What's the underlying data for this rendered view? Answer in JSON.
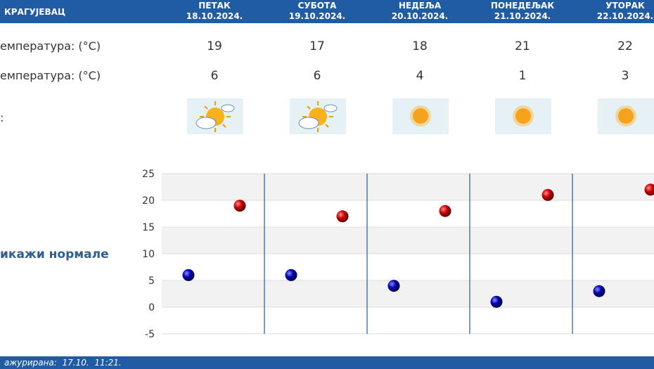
{
  "header": {
    "city": "КРАГУЈЕВАЦ",
    "days": [
      {
        "name": "ПЕТАК",
        "date": "18.10.2024."
      },
      {
        "name": "СУБОТА",
        "date": "19.10.2024."
      },
      {
        "name": "НЕДЕЉА",
        "date": "20.10.2024."
      },
      {
        "name": "ПОНЕДЕЉАК",
        "date": "21.10.2024."
      },
      {
        "name": "УТОРАК",
        "date": "22.10.2024."
      }
    ]
  },
  "rows": {
    "max_label": "емпература: (°C)",
    "min_label": "емпература: (°C)",
    "icon_label": ":"
  },
  "max_temps": [
    "19",
    "17",
    "18",
    "21",
    "22"
  ],
  "min_temps": [
    "6",
    "6",
    "4",
    "1",
    "3"
  ],
  "icons": [
    "partly-cloudy-sun-icon",
    "partly-cloudy-sun-icon",
    "sun-icon",
    "sun-icon",
    "sun-icon"
  ],
  "show_normals_label": "икажи нормале",
  "footer": {
    "updated": "ажурирана:  17.10.  11:21."
  },
  "colors": {
    "header_bg": "#1f5ca4",
    "max_dot": "#cc0000",
    "min_dot": "#0000aa"
  },
  "chart_data": {
    "type": "scatter",
    "categories": [
      "18.10.2024.",
      "19.10.2024.",
      "20.10.2024.",
      "21.10.2024.",
      "22.10.2024."
    ],
    "series": [
      {
        "values": [
          19,
          17,
          18,
          21,
          22
        ],
        "color": "#cc0000"
      },
      {
        "values": [
          6,
          6,
          4,
          1,
          3
        ],
        "color": "#0000aa"
      }
    ],
    "yticks": [
      25,
      20,
      15,
      10,
      5,
      0,
      -5
    ],
    "ylim": [
      -5,
      25
    ],
    "grid": true
  }
}
